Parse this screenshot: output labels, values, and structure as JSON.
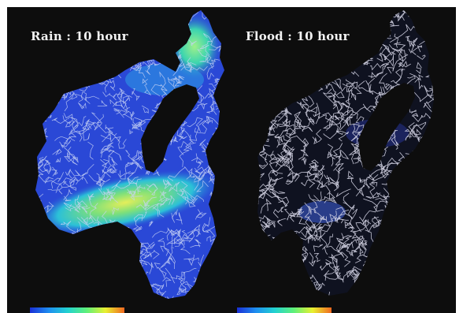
{
  "figure": {
    "panels": [
      {
        "id": "rain",
        "title": "Rain : 10 hour"
      },
      {
        "id": "flood",
        "title": "Flood : 10 hour"
      }
    ],
    "colorbar_colors": [
      "#1a2fd6",
      "#1e8ef0",
      "#22d2d0",
      "#5ef07a",
      "#e8f030",
      "#f06820"
    ],
    "colors": {
      "background": "#0d0d0d",
      "basin_base": "#2a4ad8",
      "rain_high": "#7ee07a",
      "rain_mid": "#2bb0e0",
      "river_network": "#d8d8e8"
    }
  }
}
